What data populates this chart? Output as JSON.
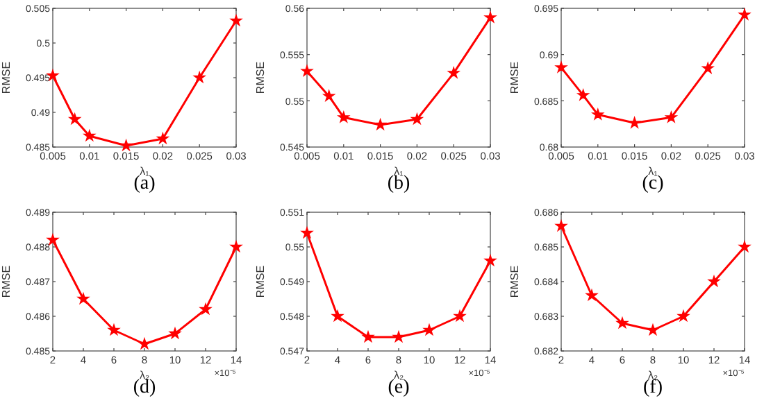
{
  "chart_data": [
    {
      "type": "line",
      "xlabel": "λ₁",
      "ylabel": "RMSE",
      "annotations": [
        "(a)"
      ],
      "x": [
        0.005,
        0.008,
        0.01,
        0.015,
        0.02,
        0.025,
        0.03
      ],
      "series": [
        {
          "color": "#ff0000",
          "values": [
            0.4953,
            0.489,
            0.4866,
            0.4852,
            0.4862,
            0.495,
            0.5032
          ]
        }
      ],
      "xlim": [
        0.005,
        0.03
      ],
      "xticks": [
        0.005,
        0.01,
        0.015,
        0.02,
        0.025,
        0.03
      ],
      "ylim": [
        0.485,
        0.505
      ],
      "yticks": [
        0.485,
        0.49,
        0.495,
        0.5,
        0.505
      ],
      "marker": "star",
      "line_style": "solid",
      "grid": false
    },
    {
      "type": "line",
      "xlabel": "λ₁",
      "ylabel": "RMSE",
      "annotations": [
        "(b)"
      ],
      "x": [
        0.005,
        0.008,
        0.01,
        0.015,
        0.02,
        0.025,
        0.03
      ],
      "series": [
        {
          "color": "#ff0000",
          "values": [
            0.5532,
            0.5505,
            0.5482,
            0.5474,
            0.548,
            0.553,
            0.559
          ]
        }
      ],
      "xlim": [
        0.005,
        0.03
      ],
      "xticks": [
        0.005,
        0.01,
        0.015,
        0.02,
        0.025,
        0.03
      ],
      "ylim": [
        0.545,
        0.56
      ],
      "yticks": [
        0.545,
        0.55,
        0.555,
        0.56
      ],
      "marker": "star",
      "line_style": "solid",
      "grid": false
    },
    {
      "type": "line",
      "xlabel": "λ₁",
      "ylabel": "RMSE",
      "annotations": [
        "(c)"
      ],
      "x": [
        0.005,
        0.008,
        0.01,
        0.015,
        0.02,
        0.025,
        0.03
      ],
      "series": [
        {
          "color": "#ff0000",
          "values": [
            0.6886,
            0.6856,
            0.6835,
            0.6826,
            0.6832,
            0.6885,
            0.6943
          ]
        }
      ],
      "xlim": [
        0.005,
        0.03
      ],
      "xticks": [
        0.005,
        0.01,
        0.015,
        0.02,
        0.025,
        0.03
      ],
      "ylim": [
        0.68,
        0.695
      ],
      "yticks": [
        0.68,
        0.685,
        0.69,
        0.695
      ],
      "marker": "star",
      "line_style": "solid",
      "grid": false
    },
    {
      "type": "line",
      "xlabel": "λ₂",
      "ylabel": "RMSE",
      "annotations": [
        "×10⁻⁵",
        "(d)"
      ],
      "x": [
        2,
        4,
        6,
        8,
        10,
        12,
        14
      ],
      "series": [
        {
          "color": "#ff0000",
          "values": [
            0.4882,
            0.4865,
            0.4856,
            0.4852,
            0.4855,
            0.4862,
            0.488
          ]
        }
      ],
      "xlim": [
        2,
        14
      ],
      "xticks": [
        2,
        4,
        6,
        8,
        10,
        12,
        14
      ],
      "ylim": [
        0.485,
        0.489
      ],
      "yticks": [
        0.485,
        0.486,
        0.487,
        0.488,
        0.489
      ],
      "marker": "star",
      "line_style": "solid",
      "grid": false
    },
    {
      "type": "line",
      "xlabel": "λ₂",
      "ylabel": "RMSE",
      "annotations": [
        "×10⁻⁵",
        "(e)"
      ],
      "x": [
        2,
        4,
        6,
        8,
        10,
        12,
        14
      ],
      "series": [
        {
          "color": "#ff0000",
          "values": [
            0.5504,
            0.548,
            0.5474,
            0.5474,
            0.5476,
            0.548,
            0.5496
          ]
        }
      ],
      "xlim": [
        2,
        14
      ],
      "xticks": [
        2,
        4,
        6,
        8,
        10,
        12,
        14
      ],
      "ylim": [
        0.547,
        0.551
      ],
      "yticks": [
        0.547,
        0.548,
        0.549,
        0.55,
        0.551
      ],
      "marker": "star",
      "line_style": "solid",
      "grid": false
    },
    {
      "type": "line",
      "xlabel": "λ₂",
      "ylabel": "RMSE",
      "annotations": [
        "×10⁻⁵",
        "(f)"
      ],
      "x": [
        2,
        4,
        6,
        8,
        10,
        12,
        14
      ],
      "series": [
        {
          "color": "#ff0000",
          "values": [
            0.6856,
            0.6836,
            0.6828,
            0.6826,
            0.683,
            0.684,
            0.685
          ]
        }
      ],
      "xlim": [
        2,
        14
      ],
      "xticks": [
        2,
        4,
        6,
        8,
        10,
        12,
        14
      ],
      "ylim": [
        0.682,
        0.686
      ],
      "yticks": [
        0.682,
        0.683,
        0.684,
        0.685,
        0.686
      ],
      "marker": "star",
      "line_style": "solid",
      "grid": false
    }
  ]
}
